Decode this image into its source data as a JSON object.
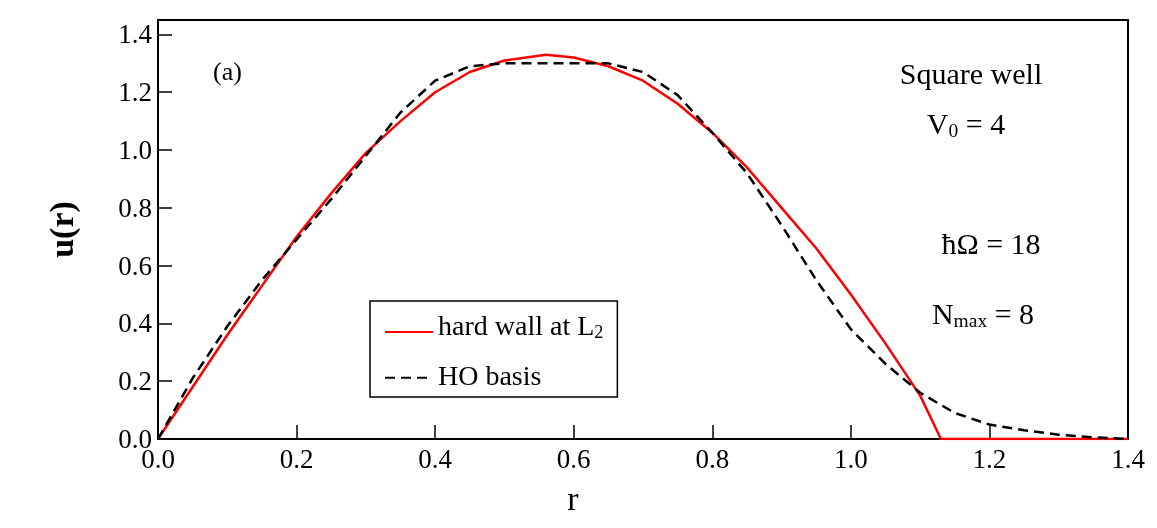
{
  "chart_data": {
    "type": "line",
    "xlabel": "r",
    "ylabel": "u(r)",
    "xlim": [
      0,
      1.4
    ],
    "xticks": [
      {
        "value": 0,
        "label": "0.0"
      },
      0.2,
      0.4,
      0.6,
      0.8,
      {
        "value": 1,
        "label": "1.0"
      },
      1.2,
      1.4
    ],
    "ylim": [
      0,
      1.45
    ],
    "yticks": [
      {
        "value": 0,
        "label": "0.0"
      },
      0.2,
      0.4,
      0.6,
      0.8,
      {
        "value": 1,
        "label": "1.0"
      },
      1.2,
      1.4
    ],
    "grid": false,
    "legend": "bottom",
    "marker": "none",
    "annotations": [
      "(a)",
      "Square well",
      "V$_{0}$ = 4",
      "ħΩ = 18",
      "N$_{max}$ = 8"
    ],
    "series": [
      {
        "name": "hard wall at L$_{2}$",
        "color": "#ff0000",
        "line_style": "solid",
        "x": [
          0,
          0.05,
          0.1,
          0.15,
          0.2,
          0.25,
          0.3,
          0.35,
          0.4,
          0.45,
          0.5,
          0.56,
          0.6,
          0.65,
          0.7,
          0.75,
          0.8,
          0.85,
          0.9,
          0.95,
          1.0,
          1.05,
          1.1,
          1.13,
          1.2,
          1.3,
          1.4
        ],
        "values": [
          0,
          0.18,
          0.36,
          0.53,
          0.7,
          0.85,
          0.99,
          1.1,
          1.2,
          1.27,
          1.31,
          1.33,
          1.32,
          1.29,
          1.24,
          1.16,
          1.06,
          0.94,
          0.8,
          0.66,
          0.5,
          0.33,
          0.15,
          0,
          0,
          0,
          0
        ]
      },
      {
        "name": "HO basis",
        "color": "#000000",
        "line_style": "dashed",
        "x": [
          0,
          0.05,
          0.1,
          0.15,
          0.2,
          0.25,
          0.3,
          0.35,
          0.4,
          0.45,
          0.5,
          0.55,
          0.6,
          0.65,
          0.7,
          0.75,
          0.8,
          0.85,
          0.9,
          0.95,
          1.0,
          1.05,
          1.1,
          1.15,
          1.2,
          1.25,
          1.3,
          1.35,
          1.4
        ],
        "values": [
          0,
          0.21,
          0.39,
          0.55,
          0.69,
          0.83,
          0.98,
          1.13,
          1.24,
          1.29,
          1.3,
          1.3,
          1.3,
          1.3,
          1.27,
          1.19,
          1.06,
          0.92,
          0.74,
          0.55,
          0.38,
          0.26,
          0.16,
          0.09,
          0.05,
          0.03,
          0.015,
          0.006,
          0
        ]
      }
    ]
  }
}
